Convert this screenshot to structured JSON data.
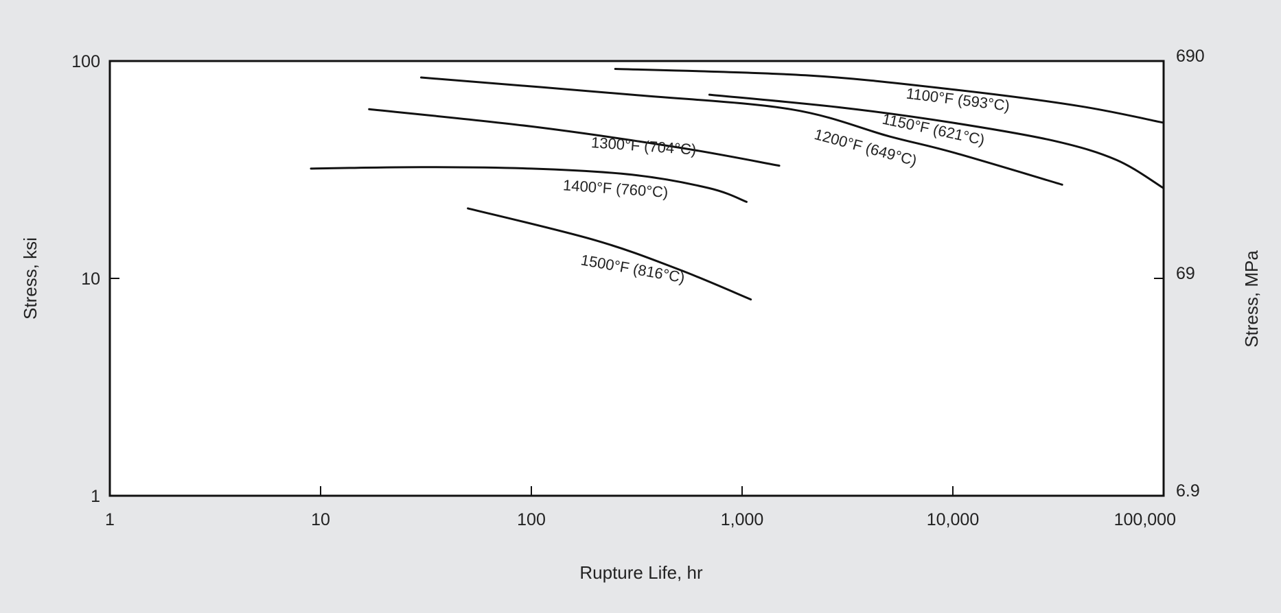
{
  "chart_data": {
    "type": "line",
    "xlabel": "Rupture Life, hr",
    "ylabel": "Stress, ksi",
    "y2label": "Stress, MPa",
    "x_scale": "log",
    "y_scale": "log",
    "xlim": [
      1,
      100000
    ],
    "ylim": [
      1,
      100
    ],
    "x_ticks": [
      {
        "value": 1,
        "label": "1"
      },
      {
        "value": 10,
        "label": "10"
      },
      {
        "value": 100,
        "label": "100"
      },
      {
        "value": 1000,
        "label": "1,000"
      },
      {
        "value": 10000,
        "label": "10,000"
      },
      {
        "value": 100000,
        "label": "100,000"
      }
    ],
    "y_ticks": [
      {
        "value": 1,
        "label": "1"
      },
      {
        "value": 10,
        "label": "10"
      },
      {
        "value": 100,
        "label": "100"
      }
    ],
    "y2_ticks": [
      {
        "value": 1,
        "label": "6.9"
      },
      {
        "value": 10,
        "label": "69"
      },
      {
        "value": 100,
        "label": "690"
      }
    ],
    "grid": false,
    "series": [
      {
        "name": "1100°F (593°C)",
        "points": [
          [
            250,
            92
          ],
          [
            2000,
            86
          ],
          [
            10000,
            74
          ],
          [
            40000,
            62
          ],
          [
            100000,
            52
          ]
        ]
      },
      {
        "name": "1150°F (621°C)",
        "points": [
          [
            700,
            70
          ],
          [
            3000,
            61
          ],
          [
            10000,
            52
          ],
          [
            30000,
            43
          ],
          [
            60000,
            35
          ],
          [
            100000,
            26
          ]
        ]
      },
      {
        "name": "1200°F (649°C)",
        "points": [
          [
            30,
            84
          ],
          [
            300,
            70
          ],
          [
            1700,
            60
          ],
          [
            5000,
            45
          ],
          [
            10000,
            38
          ],
          [
            33000,
            27
          ]
        ]
      },
      {
        "name": "1300°F (704°C)",
        "points": [
          [
            17,
            60
          ],
          [
            100,
            50
          ],
          [
            500,
            40
          ],
          [
            1500,
            33
          ]
        ]
      },
      {
        "name": "1400°F (760°C)",
        "points": [
          [
            9,
            32
          ],
          [
            30,
            32.5
          ],
          [
            100,
            32
          ],
          [
            300,
            30
          ],
          [
            700,
            26
          ],
          [
            1050,
            22.5
          ]
        ]
      },
      {
        "name": "1500°F (816°C)",
        "points": [
          [
            50,
            21
          ],
          [
            200,
            15
          ],
          [
            500,
            11
          ],
          [
            1100,
            8
          ]
        ]
      }
    ]
  }
}
